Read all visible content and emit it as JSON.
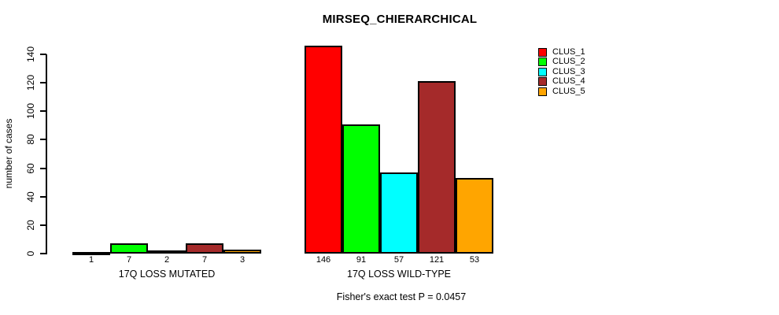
{
  "title": "MIRSEQ_CHIERARCHICAL",
  "y_axis": {
    "label": "number of cases",
    "tick_labels": [
      "0",
      "20",
      "40",
      "60",
      "80",
      "100",
      "120",
      "140"
    ]
  },
  "legend": {
    "entries": [
      {
        "label": "CLUS_1",
        "color": "#FF0000"
      },
      {
        "label": "CLUS_2",
        "color": "#00FF00"
      },
      {
        "label": "CLUS_3",
        "color": "#00FFFF"
      },
      {
        "label": "CLUS_4",
        "color": "#A52A2A"
      },
      {
        "label": "CLUS_5",
        "color": "#FFA500"
      }
    ]
  },
  "footer": "Fisher's exact test P = 0.0457",
  "chart_data": {
    "type": "bar",
    "title": "MIRSEQ_CHIERARCHICAL",
    "xlabel": "",
    "ylabel": "number of cases",
    "ylim": [
      0,
      140
    ],
    "yticks": [
      0,
      20,
      40,
      60,
      80,
      100,
      120,
      140
    ],
    "grid": false,
    "legend_position": "top-right",
    "clusters": [
      "CLUS_1",
      "CLUS_2",
      "CLUS_3",
      "CLUS_4",
      "CLUS_5"
    ],
    "cluster_colors": [
      "#FF0000",
      "#00FF00",
      "#00FFFF",
      "#A52A2A",
      "#FFA500"
    ],
    "groups": [
      {
        "label": "17Q LOSS MUTATED",
        "values": [
          1,
          7,
          2,
          7,
          3
        ]
      },
      {
        "label": "17Q LOSS WILD-TYPE",
        "values": [
          146,
          91,
          57,
          121,
          53
        ]
      }
    ],
    "bar_value_labels_shown": true,
    "annotation": "Fisher's exact test P = 0.0457"
  }
}
